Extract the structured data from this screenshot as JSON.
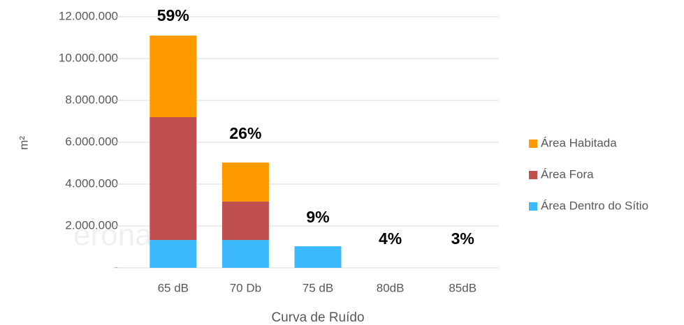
{
  "chart_data": {
    "type": "stacked_bar",
    "categories": [
      "65 dB",
      "70 Db",
      "75 dB",
      "80dB",
      "85dB"
    ],
    "series": [
      {
        "name": "Área Dentro do Sítio",
        "color": "#3cb9fc",
        "values": [
          1330000,
          1330000,
          1030000,
          0,
          0
        ]
      },
      {
        "name": "Área Fora",
        "color": "#c0504d",
        "values": [
          5870000,
          1840000,
          0,
          0,
          0
        ]
      },
      {
        "name": "Área Habitada",
        "color": "#ff9900",
        "values": [
          3900000,
          1860000,
          0,
          0,
          0
        ]
      }
    ],
    "annotations": [
      "59%",
      "26%",
      "9%",
      "4%",
      "3%"
    ],
    "ylim": [
      0,
      12000000
    ],
    "yticks": [
      {
        "value": 0,
        "label": "-"
      },
      {
        "value": 2000000,
        "label": "2.000.000"
      },
      {
        "value": 4000000,
        "label": "4.000.000"
      },
      {
        "value": 6000000,
        "label": "6.000.000"
      },
      {
        "value": 8000000,
        "label": "8.000.000"
      },
      {
        "value": 10000000,
        "label": "10.000.000"
      },
      {
        "value": 12000000,
        "label": "12.000.000"
      }
    ],
    "y_label": "m²",
    "x_label": "Curva de Ruído",
    "watermark": "eronave",
    "grid": true,
    "legend": "right"
  }
}
